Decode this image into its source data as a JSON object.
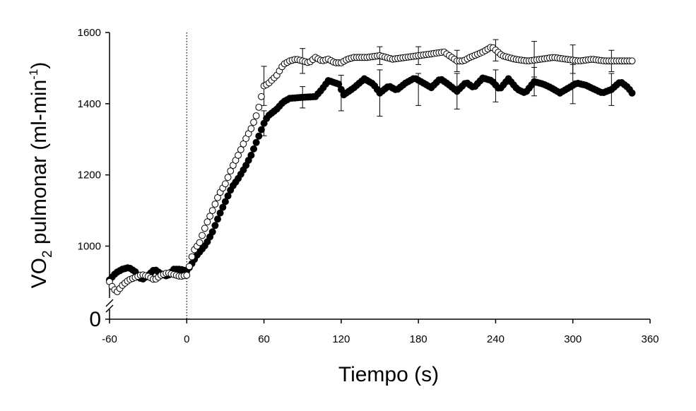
{
  "chart_data": {
    "type": "scatter",
    "xlabel": "Tiempo (s)",
    "ylabel": {
      "main": "VO",
      "subscript": "2",
      "rest": " pulmonar  (ml-min",
      "superscript": "-1",
      "close": ")"
    },
    "x_ticks": [
      "-60",
      "0",
      "60",
      "120",
      "180",
      "240",
      "300",
      "360"
    ],
    "x_tick_values": [
      -60,
      0,
      60,
      120,
      180,
      240,
      300,
      360
    ],
    "y_ticks": [
      "1000",
      "1200",
      "1400",
      "1600"
    ],
    "y_tick_values": [
      1000,
      1200,
      1400,
      1600
    ],
    "y_zero_label": "0",
    "xlim": [
      -60,
      360
    ],
    "ylim": [
      850,
      1600
    ],
    "y_axis_break": true,
    "vertical_reference_x": 0,
    "grid": false,
    "colors": {
      "filled_series": "#000000",
      "open_series": "#ffffff",
      "axis": "#000000"
    },
    "series": [
      {
        "marker": "filled-circle",
        "knots": [
          [
            -60,
            905
          ],
          [
            -55,
            925
          ],
          [
            -50,
            935
          ],
          [
            -45,
            940
          ],
          [
            -40,
            928
          ],
          [
            -35,
            905
          ],
          [
            -30,
            918
          ],
          [
            -25,
            935
          ],
          [
            -20,
            922
          ],
          [
            -15,
            915
          ],
          [
            -10,
            935
          ],
          [
            -5,
            935
          ],
          [
            0,
            930
          ],
          [
            3,
            945
          ],
          [
            8,
            975
          ],
          [
            15,
            1005
          ],
          [
            20,
            1040
          ],
          [
            25,
            1085
          ],
          [
            30,
            1125
          ],
          [
            35,
            1165
          ],
          [
            40,
            1190
          ],
          [
            45,
            1220
          ],
          [
            50,
            1255
          ],
          [
            55,
            1300
          ],
          [
            60,
            1345
          ],
          [
            63,
            1365
          ],
          [
            70,
            1385
          ],
          [
            75,
            1405
          ],
          [
            80,
            1415
          ],
          [
            90,
            1418
          ],
          [
            100,
            1420
          ],
          [
            105,
            1440
          ],
          [
            110,
            1465
          ],
          [
            118,
            1455
          ],
          [
            122,
            1425
          ],
          [
            130,
            1445
          ],
          [
            138,
            1470
          ],
          [
            145,
            1455
          ],
          [
            150,
            1430
          ],
          [
            157,
            1450
          ],
          [
            163,
            1438
          ],
          [
            170,
            1458
          ],
          [
            177,
            1472
          ],
          [
            183,
            1460
          ],
          [
            190,
            1445
          ],
          [
            197,
            1470
          ],
          [
            203,
            1455
          ],
          [
            210,
            1435
          ],
          [
            217,
            1460
          ],
          [
            223,
            1445
          ],
          [
            230,
            1472
          ],
          [
            237,
            1465
          ],
          [
            243,
            1440
          ],
          [
            250,
            1470
          ],
          [
            257,
            1440
          ],
          [
            263,
            1430
          ],
          [
            270,
            1462
          ],
          [
            277,
            1455
          ],
          [
            283,
            1445
          ],
          [
            290,
            1430
          ],
          [
            297,
            1445
          ],
          [
            303,
            1458
          ],
          [
            310,
            1452
          ],
          [
            317,
            1440
          ],
          [
            323,
            1430
          ],
          [
            330,
            1440
          ],
          [
            337,
            1462
          ],
          [
            343,
            1445
          ],
          [
            347,
            1425
          ]
        ],
        "error_bars": [
          {
            "x": 60,
            "y": 1345,
            "err": 35
          },
          {
            "x": 90,
            "y": 1418,
            "err": 30
          },
          {
            "x": 120,
            "y": 1430,
            "err": 50
          },
          {
            "x": 150,
            "y": 1430,
            "err": 65
          },
          {
            "x": 180,
            "y": 1440,
            "err": 45
          },
          {
            "x": 210,
            "y": 1435,
            "err": 50
          },
          {
            "x": 240,
            "y": 1450,
            "err": 45
          },
          {
            "x": 270,
            "y": 1462,
            "err": 40
          },
          {
            "x": 300,
            "y": 1455,
            "err": 55
          },
          {
            "x": 330,
            "y": 1440,
            "err": 45
          }
        ]
      },
      {
        "marker": "open-circle",
        "knots": [
          [
            -60,
            900
          ],
          [
            -57,
            880
          ],
          [
            -54,
            872
          ],
          [
            -50,
            890
          ],
          [
            -45,
            905
          ],
          [
            -40,
            912
          ],
          [
            -35,
            920
          ],
          [
            -30,
            915
          ],
          [
            -25,
            905
          ],
          [
            -20,
            918
          ],
          [
            -15,
            925
          ],
          [
            -10,
            920
          ],
          [
            -5,
            915
          ],
          [
            0,
            918
          ],
          [
            3,
            955
          ],
          [
            5,
            985
          ],
          [
            10,
            1010
          ],
          [
            15,
            1060
          ],
          [
            20,
            1100
          ],
          [
            25,
            1145
          ],
          [
            30,
            1175
          ],
          [
            35,
            1220
          ],
          [
            40,
            1255
          ],
          [
            45,
            1295
          ],
          [
            50,
            1330
          ],
          [
            55,
            1375
          ],
          [
            60,
            1450
          ],
          [
            63,
            1455
          ],
          [
            70,
            1480
          ],
          [
            75,
            1510
          ],
          [
            80,
            1520
          ],
          [
            85,
            1525
          ],
          [
            90,
            1520
          ],
          [
            95,
            1515
          ],
          [
            100,
            1530
          ],
          [
            105,
            1520
          ],
          [
            110,
            1525
          ],
          [
            115,
            1515
          ],
          [
            120,
            1515
          ],
          [
            125,
            1525
          ],
          [
            130,
            1530
          ],
          [
            140,
            1530
          ],
          [
            150,
            1535
          ],
          [
            160,
            1525
          ],
          [
            170,
            1530
          ],
          [
            180,
            1535
          ],
          [
            190,
            1540
          ],
          [
            200,
            1545
          ],
          [
            210,
            1520
          ],
          [
            215,
            1520
          ],
          [
            220,
            1530
          ],
          [
            230,
            1545
          ],
          [
            237,
            1560
          ],
          [
            245,
            1535
          ],
          [
            255,
            1525
          ],
          [
            265,
            1520
          ],
          [
            275,
            1525
          ],
          [
            285,
            1530
          ],
          [
            295,
            1525
          ],
          [
            305,
            1520
          ],
          [
            315,
            1525
          ],
          [
            325,
            1520
          ],
          [
            335,
            1520
          ],
          [
            347,
            1520
          ]
        ],
        "error_bars": [
          {
            "x": 60,
            "y": 1450,
            "err": 55
          },
          {
            "x": 90,
            "y": 1520,
            "err": 35
          },
          {
            "x": 150,
            "y": 1535,
            "err": 25
          },
          {
            "x": 180,
            "y": 1535,
            "err": 25
          },
          {
            "x": 210,
            "y": 1520,
            "err": 30
          },
          {
            "x": 240,
            "y": 1550,
            "err": 30
          },
          {
            "x": 270,
            "y": 1525,
            "err": 50
          },
          {
            "x": 300,
            "y": 1525,
            "err": 40
          },
          {
            "x": 330,
            "y": 1520,
            "err": 30
          }
        ]
      }
    ]
  }
}
